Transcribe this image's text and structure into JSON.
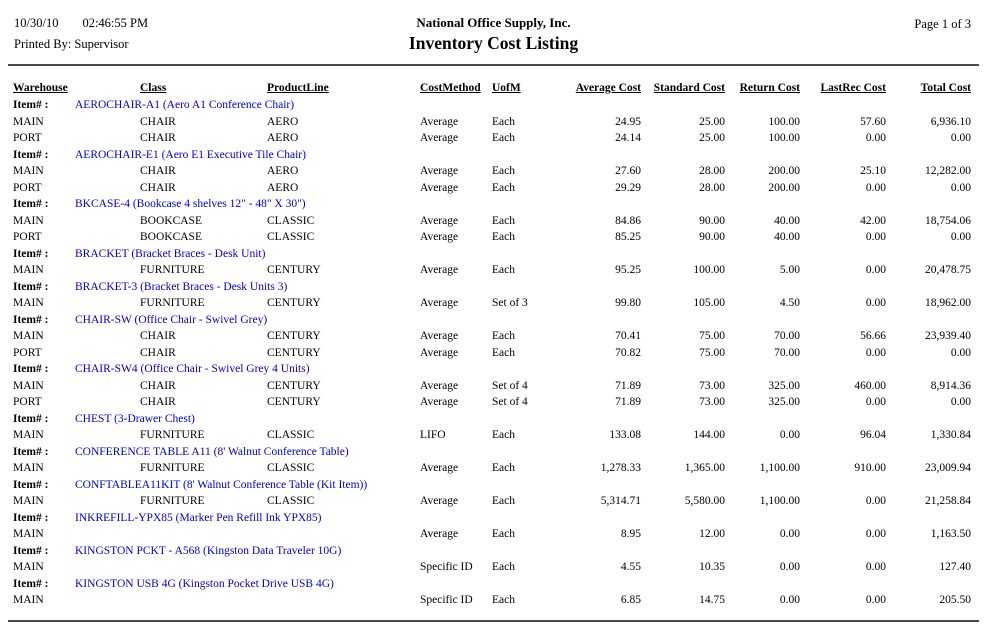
{
  "colors": {
    "item_link": "#0000CC",
    "text": "#000000",
    "rule": "#4a4a4a"
  },
  "header": {
    "date": "10/30/10",
    "time": "02:46:55 PM",
    "printed_by": "Printed By: Supervisor",
    "company": "National Office Supply, Inc.",
    "title": "Inventory Cost Listing",
    "page": "Page 1 of 3"
  },
  "table": {
    "item_label": "Item# :",
    "columns": [
      "Warehouse",
      "Class",
      "ProductLine",
      "CostMethod",
      "UofM",
      "Average Cost",
      "Standard Cost",
      "Return Cost",
      "LastRec Cost",
      "Total Cost"
    ],
    "groups": [
      {
        "item": "AEROCHAIR-A1 (Aero A1 Conference Chair)",
        "rows": [
          {
            "warehouse": "MAIN",
            "class": "CHAIR",
            "product_line": "AERO",
            "cost_method": "Average",
            "uofm": "Each",
            "average_cost": "24.95",
            "standard_cost": "25.00",
            "return_cost": "100.00",
            "lastrec_cost": "57.60",
            "total_cost": "6,936.10"
          },
          {
            "warehouse": "PORT",
            "class": "CHAIR",
            "product_line": "AERO",
            "cost_method": "Average",
            "uofm": "Each",
            "average_cost": "24.14",
            "standard_cost": "25.00",
            "return_cost": "100.00",
            "lastrec_cost": "0.00",
            "total_cost": "0.00"
          }
        ]
      },
      {
        "item": "AEROCHAIR-E1 (Aero E1 Executive Tile Chair)",
        "rows": [
          {
            "warehouse": "MAIN",
            "class": "CHAIR",
            "product_line": "AERO",
            "cost_method": "Average",
            "uofm": "Each",
            "average_cost": "27.60",
            "standard_cost": "28.00",
            "return_cost": "200.00",
            "lastrec_cost": "25.10",
            "total_cost": "12,282.00"
          },
          {
            "warehouse": "PORT",
            "class": "CHAIR",
            "product_line": "AERO",
            "cost_method": "Average",
            "uofm": "Each",
            "average_cost": "29.29",
            "standard_cost": "28.00",
            "return_cost": "200.00",
            "lastrec_cost": "0.00",
            "total_cost": "0.00"
          }
        ]
      },
      {
        "item": "BKCASE-4 (Bookcase 4 shelves 12\" - 48\" X 30\")",
        "rows": [
          {
            "warehouse": "MAIN",
            "class": "BOOKCASE",
            "product_line": "CLASSIC",
            "cost_method": "Average",
            "uofm": "Each",
            "average_cost": "84.86",
            "standard_cost": "90.00",
            "return_cost": "40.00",
            "lastrec_cost": "42.00",
            "total_cost": "18,754.06"
          },
          {
            "warehouse": "PORT",
            "class": "BOOKCASE",
            "product_line": "CLASSIC",
            "cost_method": "Average",
            "uofm": "Each",
            "average_cost": "85.25",
            "standard_cost": "90.00",
            "return_cost": "40.00",
            "lastrec_cost": "0.00",
            "total_cost": "0.00"
          }
        ]
      },
      {
        "item": "BRACKET (Bracket Braces - Desk Unit)",
        "rows": [
          {
            "warehouse": "MAIN",
            "class": "FURNITURE",
            "product_line": "CENTURY",
            "cost_method": "Average",
            "uofm": "Each",
            "average_cost": "95.25",
            "standard_cost": "100.00",
            "return_cost": "5.00",
            "lastrec_cost": "0.00",
            "total_cost": "20,478.75"
          }
        ]
      },
      {
        "item": "BRACKET-3 (Bracket Braces - Desk Units 3)",
        "rows": [
          {
            "warehouse": "MAIN",
            "class": "FURNITURE",
            "product_line": "CENTURY",
            "cost_method": "Average",
            "uofm": "Set of 3",
            "average_cost": "99.80",
            "standard_cost": "105.00",
            "return_cost": "4.50",
            "lastrec_cost": "0.00",
            "total_cost": "18,962.00"
          }
        ]
      },
      {
        "item": "CHAIR-SW (Office Chair - Swivel Grey)",
        "rows": [
          {
            "warehouse": "MAIN",
            "class": "CHAIR",
            "product_line": "CENTURY",
            "cost_method": "Average",
            "uofm": "Each",
            "average_cost": "70.41",
            "standard_cost": "75.00",
            "return_cost": "70.00",
            "lastrec_cost": "56.66",
            "total_cost": "23,939.40"
          },
          {
            "warehouse": "PORT",
            "class": "CHAIR",
            "product_line": "CENTURY",
            "cost_method": "Average",
            "uofm": "Each",
            "average_cost": "70.82",
            "standard_cost": "75.00",
            "return_cost": "70.00",
            "lastrec_cost": "0.00",
            "total_cost": "0.00"
          }
        ]
      },
      {
        "item": "CHAIR-SW4 (Office Chair - Swivel Grey 4 Units)",
        "rows": [
          {
            "warehouse": "MAIN",
            "class": "CHAIR",
            "product_line": "CENTURY",
            "cost_method": "Average",
            "uofm": "Set of 4",
            "average_cost": "71.89",
            "standard_cost": "73.00",
            "return_cost": "325.00",
            "lastrec_cost": "460.00",
            "total_cost": "8,914.36"
          },
          {
            "warehouse": "PORT",
            "class": "CHAIR",
            "product_line": "CENTURY",
            "cost_method": "Average",
            "uofm": "Set of 4",
            "average_cost": "71.89",
            "standard_cost": "73.00",
            "return_cost": "325.00",
            "lastrec_cost": "0.00",
            "total_cost": "0.00"
          }
        ]
      },
      {
        "item": "CHEST (3-Drawer Chest)",
        "rows": [
          {
            "warehouse": "MAIN",
            "class": "FURNITURE",
            "product_line": "CLASSIC",
            "cost_method": "LIFO",
            "uofm": "Each",
            "average_cost": "133.08",
            "standard_cost": "144.00",
            "return_cost": "0.00",
            "lastrec_cost": "96.04",
            "total_cost": "1,330.84"
          }
        ]
      },
      {
        "item": "CONFERENCE TABLE A11 (8' Walnut Conference Table)",
        "rows": [
          {
            "warehouse": "MAIN",
            "class": "FURNITURE",
            "product_line": "CLASSIC",
            "cost_method": "Average",
            "uofm": "Each",
            "average_cost": "1,278.33",
            "standard_cost": "1,365.00",
            "return_cost": "1,100.00",
            "lastrec_cost": "910.00",
            "total_cost": "23,009.94"
          }
        ]
      },
      {
        "item": "CONFTABLEA11KIT (8' Walnut Conference Table (Kit Item))",
        "rows": [
          {
            "warehouse": "MAIN",
            "class": "FURNITURE",
            "product_line": "CLASSIC",
            "cost_method": "Average",
            "uofm": "Each",
            "average_cost": "5,314.71",
            "standard_cost": "5,580.00",
            "return_cost": "1,100.00",
            "lastrec_cost": "0.00",
            "total_cost": "21,258.84"
          }
        ]
      },
      {
        "item": "INKREFILL-YPX85 (Marker Pen Refill Ink YPX85)",
        "rows": [
          {
            "warehouse": "MAIN",
            "class": "",
            "product_line": "",
            "cost_method": "Average",
            "uofm": "Each",
            "average_cost": "8.95",
            "standard_cost": "12.00",
            "return_cost": "0.00",
            "lastrec_cost": "0.00",
            "total_cost": "1,163.50"
          }
        ]
      },
      {
        "item": "KINGSTON PCKT - A568 (Kingston Data Traveler 10G)",
        "rows": [
          {
            "warehouse": "MAIN",
            "class": "",
            "product_line": "",
            "cost_method": "Specific ID",
            "uofm": "Each",
            "average_cost": "4.55",
            "standard_cost": "10.35",
            "return_cost": "0.00",
            "lastrec_cost": "0.00",
            "total_cost": "127.40"
          }
        ]
      },
      {
        "item": "KINGSTON USB 4G (Kingston Pocket Drive USB 4G)",
        "rows": [
          {
            "warehouse": "MAIN",
            "class": "",
            "product_line": "",
            "cost_method": "Specific ID",
            "uofm": "Each",
            "average_cost": "6.85",
            "standard_cost": "14.75",
            "return_cost": "0.00",
            "lastrec_cost": "0.00",
            "total_cost": "205.50"
          }
        ]
      }
    ]
  }
}
